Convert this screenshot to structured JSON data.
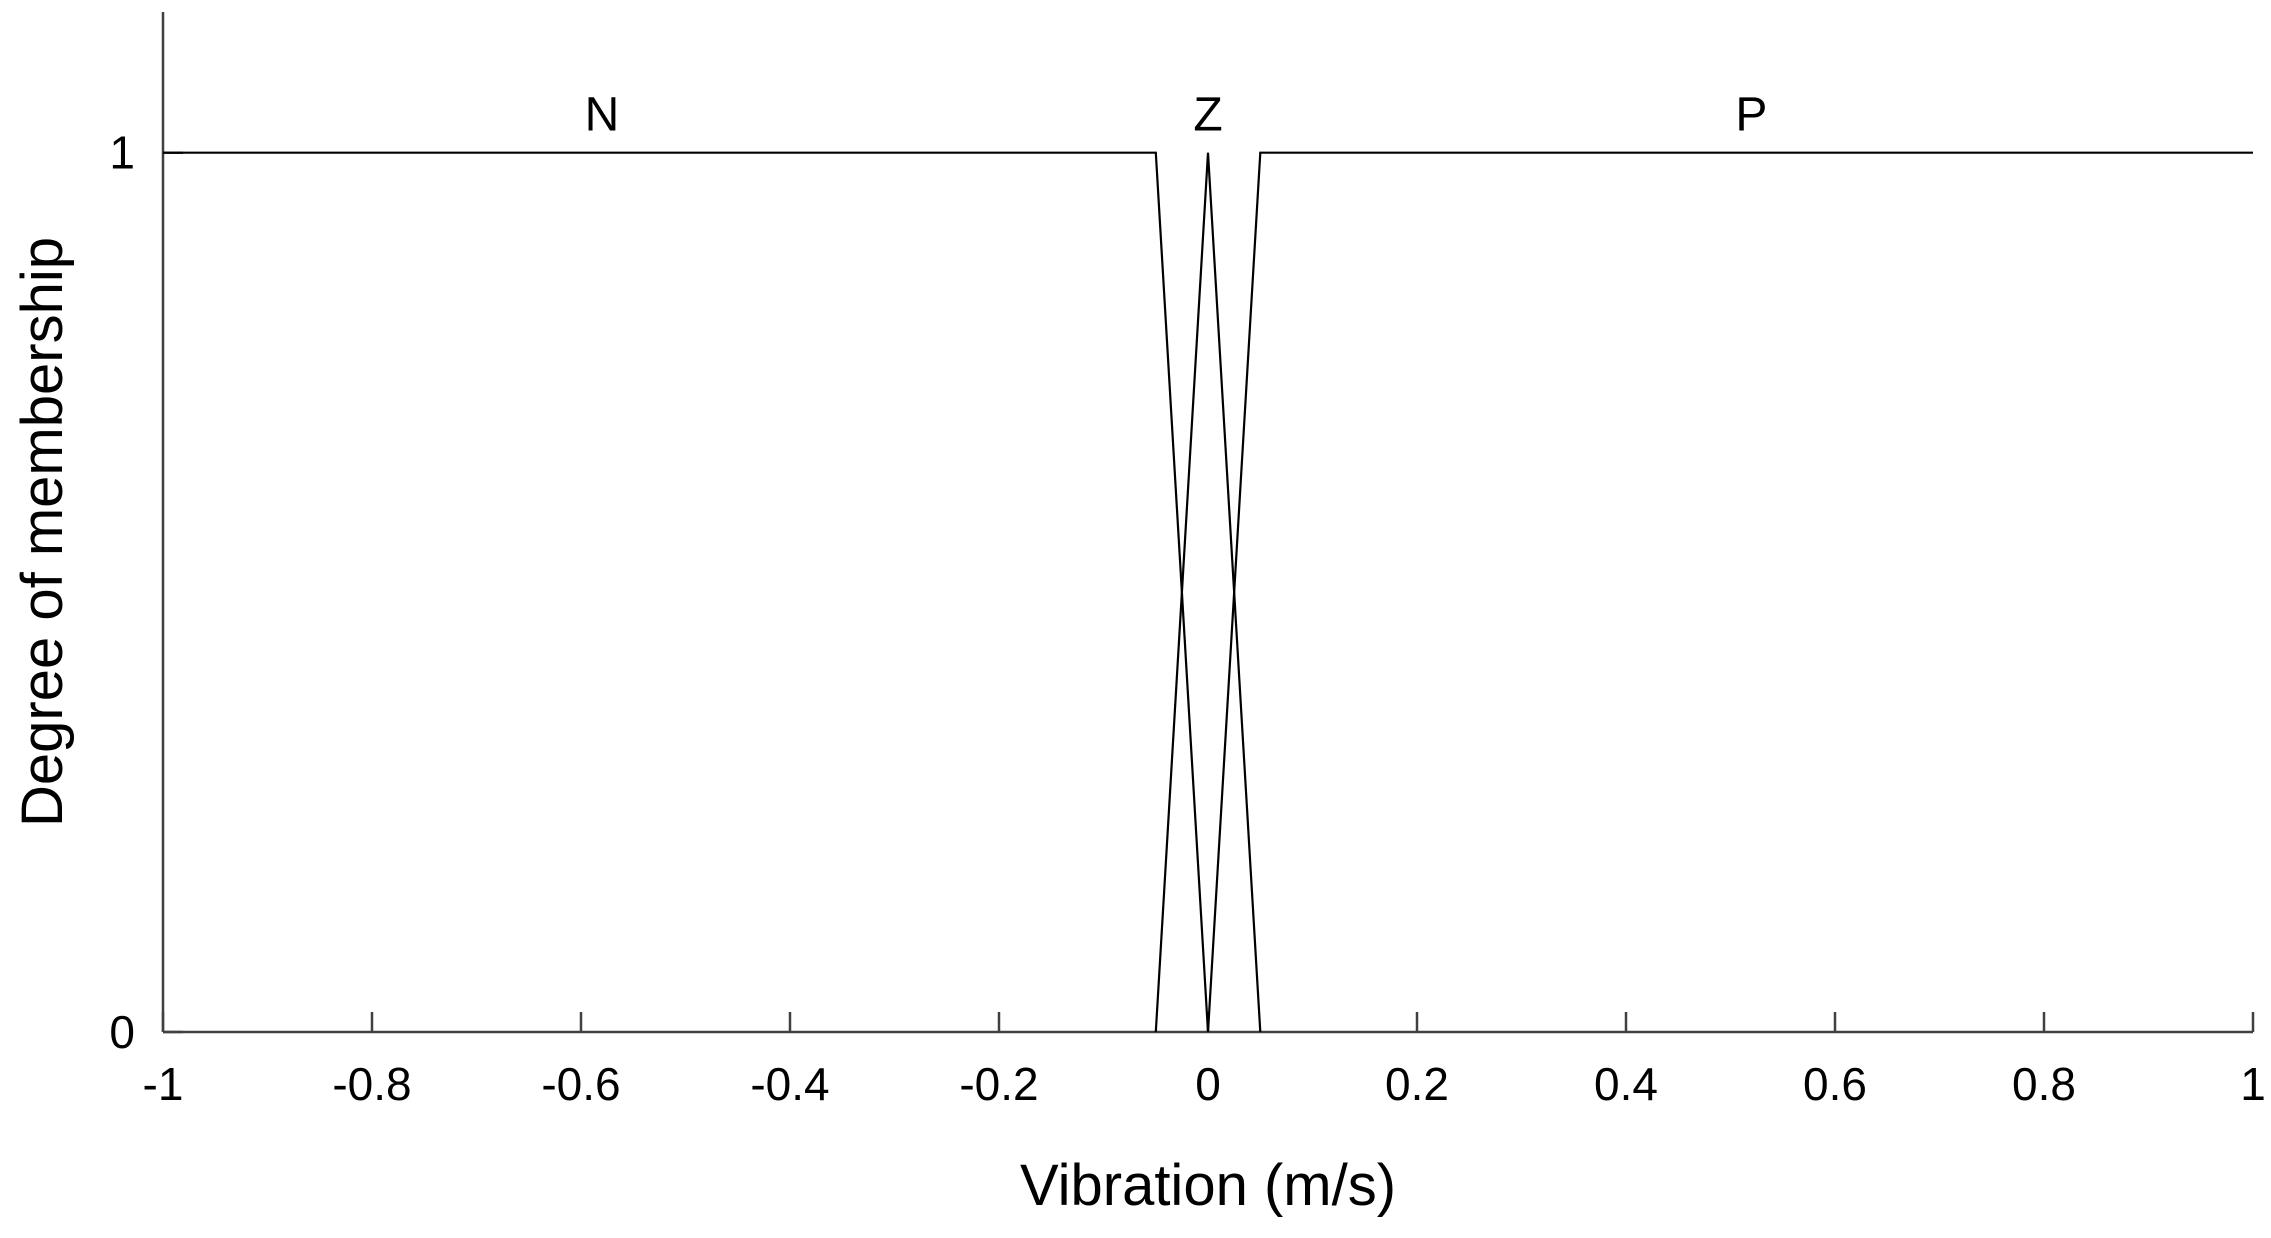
{
  "chart_data": {
    "type": "line",
    "title": "",
    "xlabel": "Vibration  (m/s)",
    "ylabel": "Degree of membership",
    "xlim": [
      -1,
      1
    ],
    "ylim": [
      0,
      1.16
    ],
    "x_ticks": [
      -1,
      -0.8,
      -0.6,
      -0.4,
      -0.2,
      0,
      0.2,
      0.4,
      0.6,
      0.8,
      1
    ],
    "x_tick_labels": [
      "-1",
      "-0.8",
      "-0.6",
      "-0.4",
      "-0.2",
      "0",
      "0.2",
      "0.4",
      "0.6",
      "0.8",
      "1"
    ],
    "y_ticks": [
      0,
      1
    ],
    "y_tick_labels": [
      "0",
      "1"
    ],
    "grid": false,
    "legend": "none",
    "series": [
      {
        "name": "N",
        "label_x": -0.58,
        "x": [
          -1,
          -0.05,
          0
        ],
        "y": [
          1,
          1,
          0
        ]
      },
      {
        "name": "Z",
        "label_x": 0,
        "x": [
          -0.05,
          0,
          0.05
        ],
        "y": [
          0,
          1,
          0
        ]
      },
      {
        "name": "P",
        "label_x": 0.52,
        "x": [
          0,
          0.05,
          1
        ],
        "y": [
          0,
          1,
          1
        ]
      }
    ]
  }
}
